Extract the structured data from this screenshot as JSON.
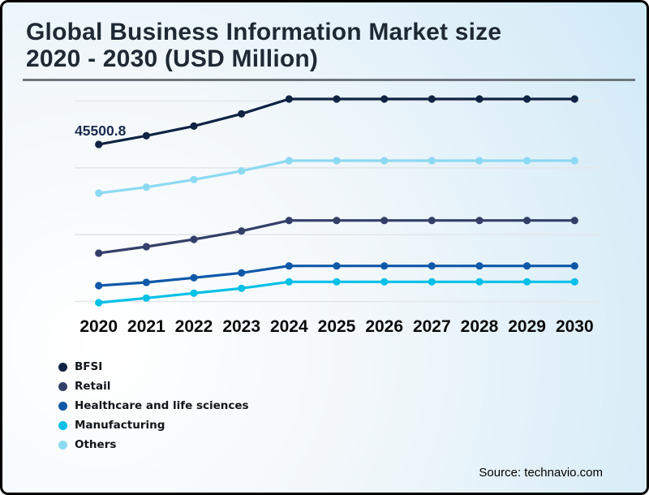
{
  "header": {
    "title_line1": "Global Business Information Market size",
    "title_line2": "2020 - 2030 (USD Million)"
  },
  "footer": {
    "source": "Source: technavio.com"
  },
  "colors": {
    "title_text": "#1f2933",
    "axis_label_text": "#0a0a0a",
    "annotation_text": "#1b2b4e",
    "gridline": "#e3e7ea",
    "divider": "#6e757c",
    "card_border": "#000000",
    "background_tint": "#cfe9f7"
  },
  "chart_data": {
    "type": "line",
    "title": "Global Business Information Market size 2020 - 2030 (USD Million)",
    "x": [
      2020,
      2021,
      2022,
      2023,
      2024,
      2025,
      2026,
      2027,
      2028,
      2029,
      2030
    ],
    "series": [
      {
        "name": "BFSI",
        "color": "#102343",
        "values": [
          45500.8,
          46800,
          48250,
          50080,
          52300,
          52300,
          52300,
          52300,
          52300,
          52300,
          52300
        ]
      },
      {
        "name": "Retail",
        "color": "#343f69",
        "values": [
          29230,
          30200,
          31290,
          32540,
          34120,
          34120,
          34120,
          34120,
          34120,
          34120,
          34120
        ]
      },
      {
        "name": "Healthcare and life sciences",
        "color": "#0f58a8",
        "values": [
          24370,
          24860,
          25550,
          26280,
          27320,
          27320,
          27320,
          27320,
          27320,
          27320,
          27320
        ]
      },
      {
        "name": "Manufacturing",
        "color": "#05c0e7",
        "values": [
          21820,
          22510,
          23240,
          23970,
          24940,
          24940,
          24940,
          24940,
          24940,
          24940,
          24940
        ]
      },
      {
        "name": "Others",
        "color": "#8cd9f2",
        "values": [
          38210,
          39100,
          40240,
          41530,
          43070,
          43070,
          43070,
          43070,
          43070,
          43070,
          43070
        ]
      }
    ],
    "annotation": {
      "series": "BFSI",
      "x": 2020,
      "text": "45500.8"
    },
    "xlabel": "",
    "ylabel": "",
    "ylim": [
      20000,
      54000
    ],
    "gridline_values": [
      22000,
      32000,
      42000,
      52000
    ],
    "grid": "horizontal-only",
    "y_axis_labels_shown": false,
    "legend_position": "bottom-left"
  }
}
